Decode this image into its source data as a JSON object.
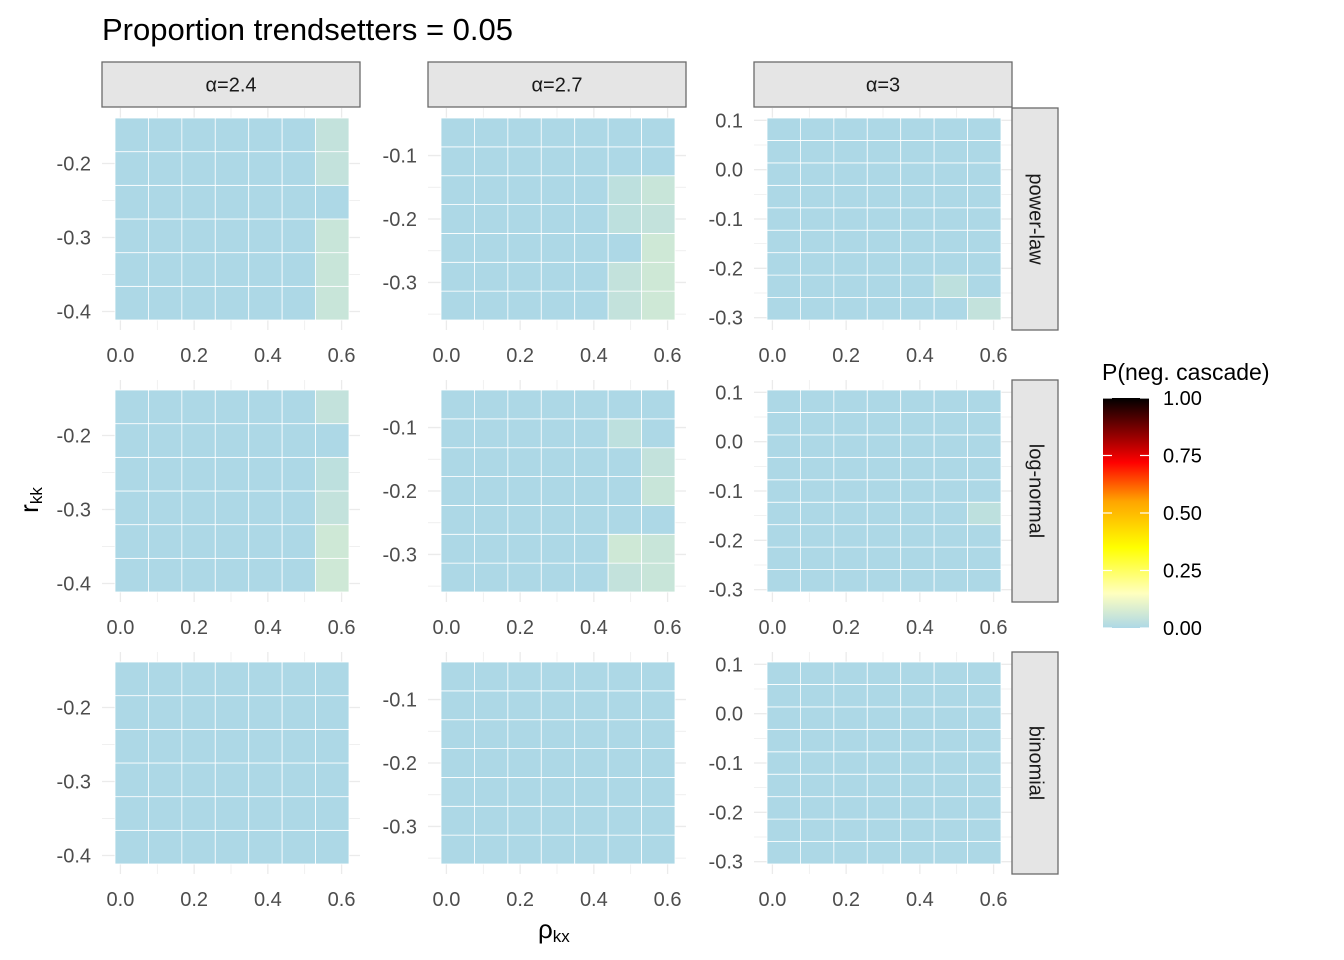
{
  "title": "Proportion trendsetters = 0.05",
  "chart_data": {
    "type": "heatmap",
    "title": "Proportion trendsetters = 0.05",
    "xlabel": "ρ",
    "xlabel_sub": "kx",
    "ylabel": "r",
    "ylabel_sub": "kk",
    "col_facets": [
      "α=2.4",
      "α=2.7",
      "α=3"
    ],
    "row_facets": [
      "power-law",
      "log-normal",
      "binomial"
    ],
    "x_ticks": [
      0.0,
      0.2,
      0.4,
      0.6
    ],
    "x_tick_labels": [
      "0.0",
      "0.2",
      "0.4",
      "0.6"
    ],
    "xlim": [
      -0.05,
      0.65
    ],
    "x_values": [
      0.0,
      0.1,
      0.2,
      0.3,
      0.4,
      0.5,
      0.6
    ],
    "columns": [
      {
        "ylim": [
          -0.425,
          -0.125
        ],
        "y_ticks": [
          -0.2,
          -0.3,
          -0.4
        ],
        "y_tick_labels": [
          "-0.2",
          "-0.3",
          "-0.4"
        ],
        "y_values": [
          -0.4,
          -0.35,
          -0.3,
          -0.25,
          -0.2,
          -0.15
        ]
      },
      {
        "ylim": [
          -0.375,
          -0.025
        ],
        "y_ticks": [
          -0.1,
          -0.2,
          -0.3
        ],
        "y_tick_labels": [
          "-0.1",
          "-0.2",
          "-0.3"
        ],
        "y_values": [
          -0.35,
          -0.3,
          -0.25,
          -0.2,
          -0.15,
          -0.1,
          -0.05
        ]
      },
      {
        "ylim": [
          -0.325,
          0.125
        ],
        "y_ticks": [
          0.1,
          0.0,
          -0.1,
          -0.2,
          -0.3
        ],
        "y_tick_labels": [
          "0.1",
          "0.0",
          "-0.1",
          "-0.2",
          "-0.3"
        ],
        "y_values": [
          -0.3,
          -0.25,
          -0.2,
          -0.15,
          -0.1,
          -0.05,
          0.0,
          0.05,
          0.1
        ]
      }
    ],
    "base_value": 0.0,
    "highlighted_cells": [
      {
        "row": 0,
        "col": 0,
        "x": 0.6,
        "y": -0.15,
        "value": 0.04
      },
      {
        "row": 0,
        "col": 0,
        "x": 0.6,
        "y": -0.2,
        "value": 0.04
      },
      {
        "row": 0,
        "col": 0,
        "x": 0.6,
        "y": -0.3,
        "value": 0.05
      },
      {
        "row": 0,
        "col": 0,
        "x": 0.6,
        "y": -0.35,
        "value": 0.05
      },
      {
        "row": 0,
        "col": 0,
        "x": 0.6,
        "y": -0.4,
        "value": 0.05
      },
      {
        "row": 0,
        "col": 1,
        "x": 0.5,
        "y": -0.15,
        "value": 0.03
      },
      {
        "row": 0,
        "col": 1,
        "x": 0.6,
        "y": -0.15,
        "value": 0.05
      },
      {
        "row": 0,
        "col": 1,
        "x": 0.5,
        "y": -0.2,
        "value": 0.03
      },
      {
        "row": 0,
        "col": 1,
        "x": 0.6,
        "y": -0.2,
        "value": 0.04
      },
      {
        "row": 0,
        "col": 1,
        "x": 0.6,
        "y": -0.25,
        "value": 0.06
      },
      {
        "row": 0,
        "col": 1,
        "x": 0.5,
        "y": -0.3,
        "value": 0.04
      },
      {
        "row": 0,
        "col": 1,
        "x": 0.6,
        "y": -0.3,
        "value": 0.06
      },
      {
        "row": 0,
        "col": 1,
        "x": 0.5,
        "y": -0.35,
        "value": 0.04
      },
      {
        "row": 0,
        "col": 1,
        "x": 0.6,
        "y": -0.35,
        "value": 0.06
      },
      {
        "row": 0,
        "col": 2,
        "x": 0.5,
        "y": -0.25,
        "value": 0.03
      },
      {
        "row": 0,
        "col": 2,
        "x": 0.6,
        "y": -0.3,
        "value": 0.04
      },
      {
        "row": 1,
        "col": 0,
        "x": 0.6,
        "y": -0.15,
        "value": 0.04
      },
      {
        "row": 1,
        "col": 0,
        "x": 0.6,
        "y": -0.25,
        "value": 0.03
      },
      {
        "row": 1,
        "col": 0,
        "x": 0.6,
        "y": -0.3,
        "value": 0.04
      },
      {
        "row": 1,
        "col": 0,
        "x": 0.6,
        "y": -0.35,
        "value": 0.06
      },
      {
        "row": 1,
        "col": 0,
        "x": 0.6,
        "y": -0.4,
        "value": 0.06
      },
      {
        "row": 1,
        "col": 1,
        "x": 0.5,
        "y": -0.1,
        "value": 0.03
      },
      {
        "row": 1,
        "col": 1,
        "x": 0.6,
        "y": -0.15,
        "value": 0.04
      },
      {
        "row": 1,
        "col": 1,
        "x": 0.6,
        "y": -0.2,
        "value": 0.05
      },
      {
        "row": 1,
        "col": 1,
        "x": 0.5,
        "y": -0.3,
        "value": 0.06
      },
      {
        "row": 1,
        "col": 1,
        "x": 0.6,
        "y": -0.3,
        "value": 0.05
      },
      {
        "row": 1,
        "col": 1,
        "x": 0.5,
        "y": -0.35,
        "value": 0.04
      },
      {
        "row": 1,
        "col": 1,
        "x": 0.6,
        "y": -0.35,
        "value": 0.05
      },
      {
        "row": 1,
        "col": 2,
        "x": 0.6,
        "y": -0.15,
        "value": 0.03
      }
    ],
    "legend": {
      "title": "P(neg. cascade)",
      "placement": "right",
      "ticks": [
        1.0,
        0.75,
        0.5,
        0.25,
        0.0
      ],
      "tick_labels": [
        "1.00",
        "0.75",
        "0.50",
        "0.25",
        "0.00"
      ],
      "range": [
        0,
        1
      ],
      "colors": [
        {
          "stop": 0.0,
          "color": "#add8e6"
        },
        {
          "stop": 0.15,
          "color": "#ffffbf"
        },
        {
          "stop": 0.35,
          "color": "#ffff00"
        },
        {
          "stop": 0.55,
          "color": "#ffa500"
        },
        {
          "stop": 0.72,
          "color": "#ff0000"
        },
        {
          "stop": 1.0,
          "color": "#000000"
        }
      ]
    },
    "grid": true,
    "panel_background": "#ffffff",
    "grid_color": "#ebebeb",
    "strip_fill": "#e5e5e5",
    "strip_border": "#6b6b6b"
  }
}
